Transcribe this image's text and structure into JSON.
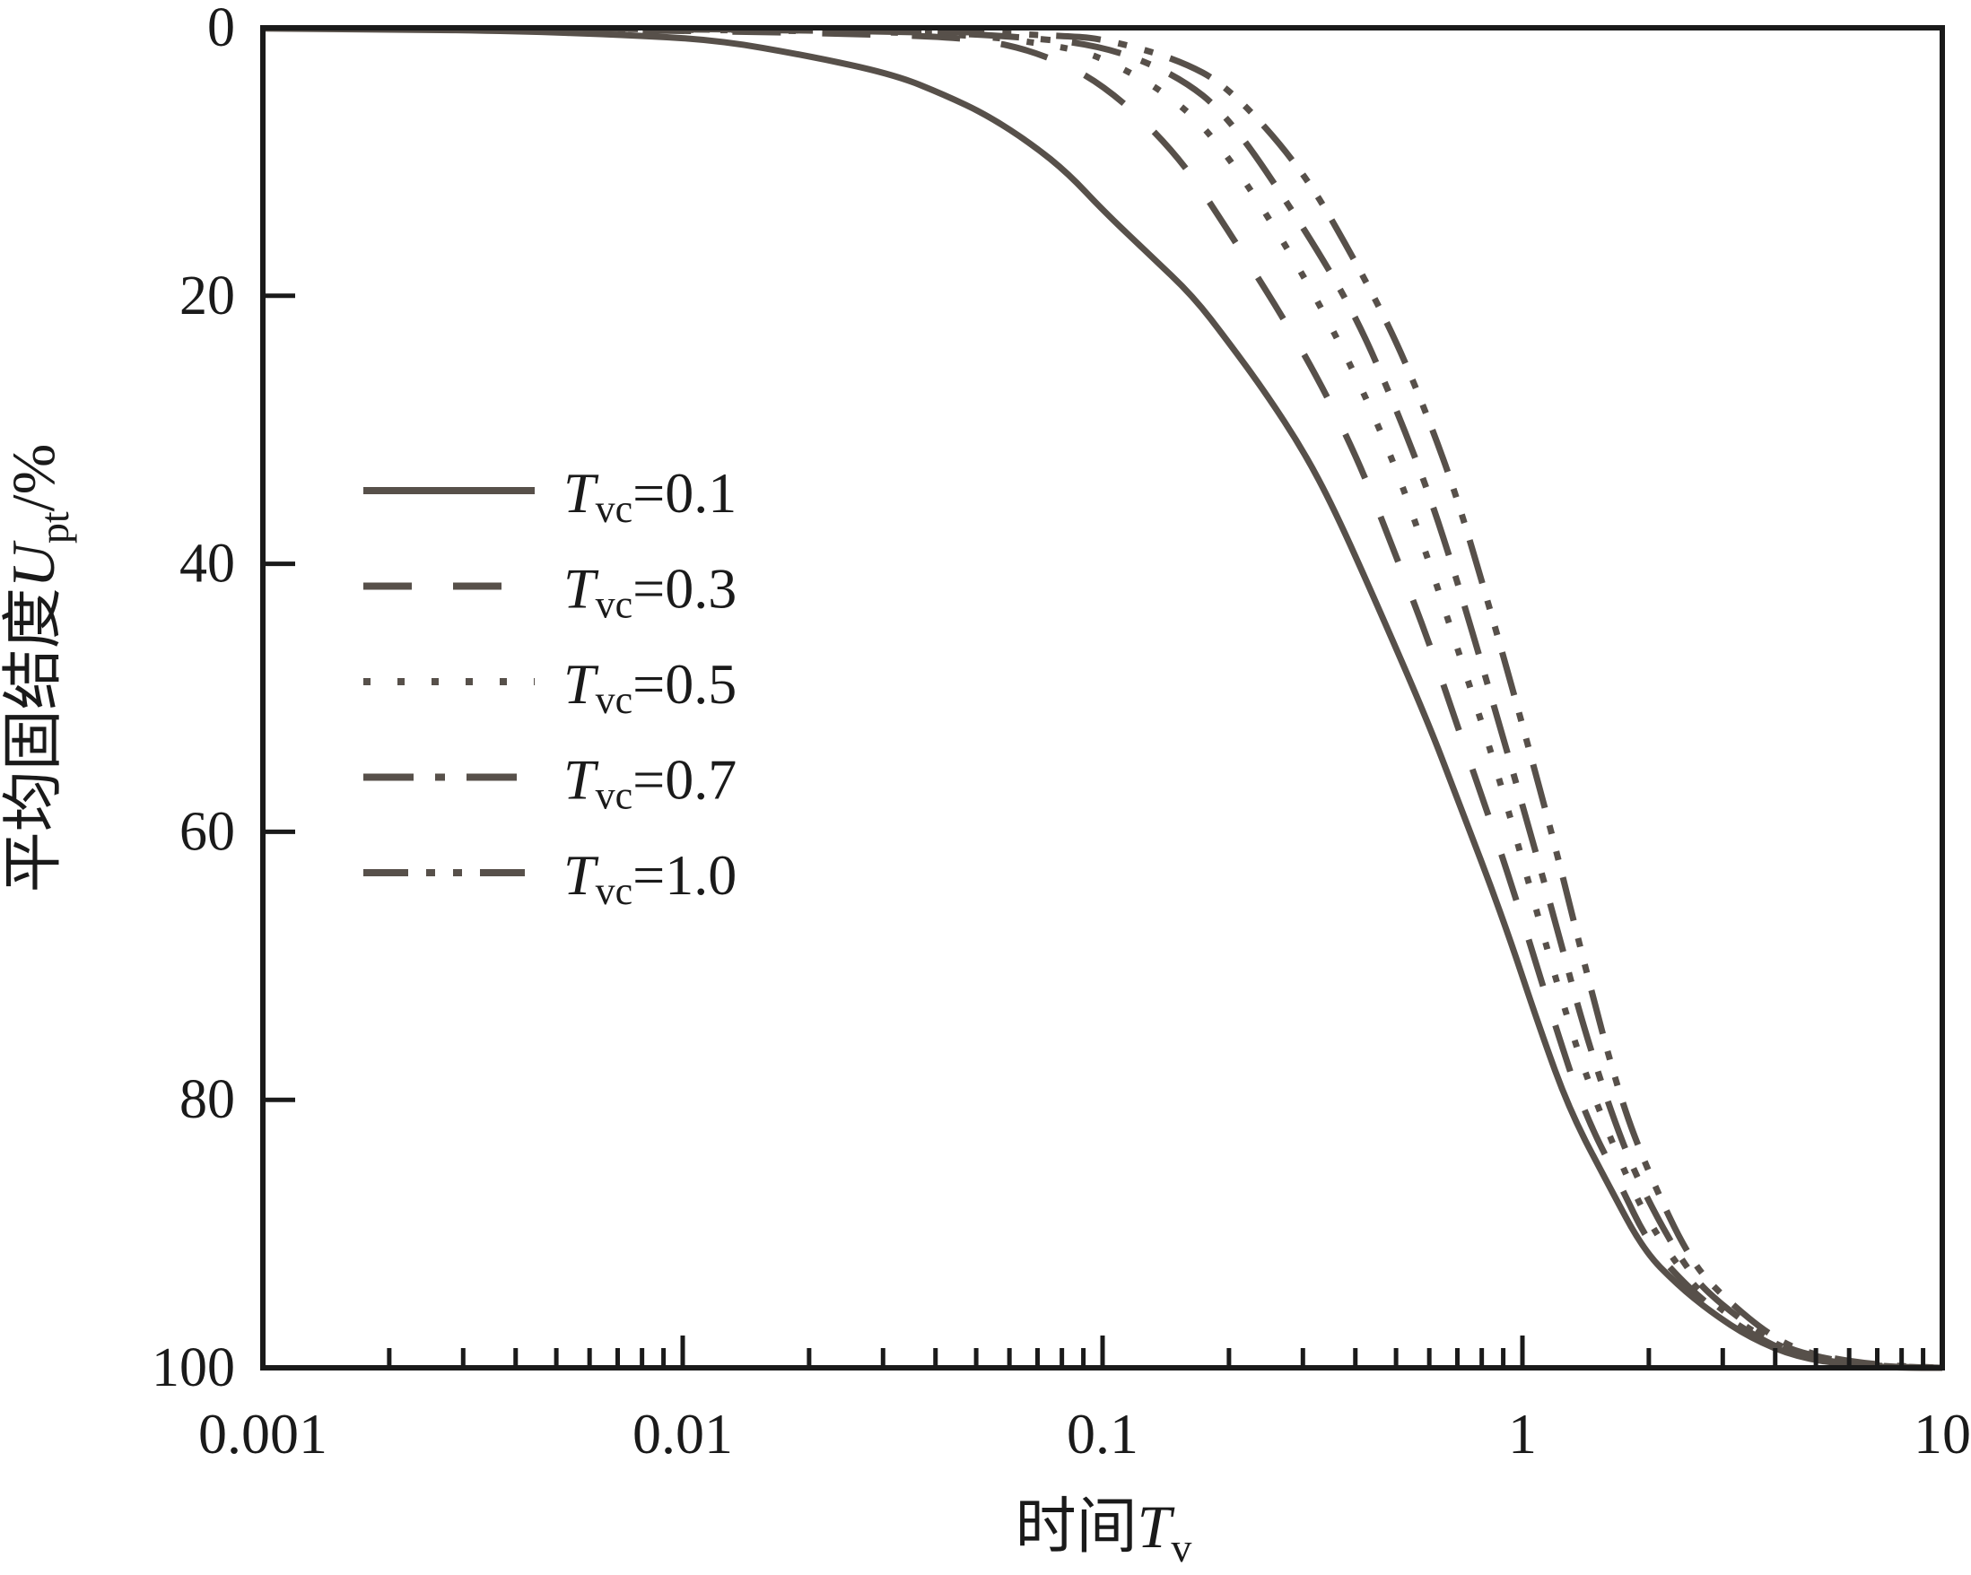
{
  "chart_data": {
    "type": "line",
    "title": "",
    "x_scale": "log",
    "xlim": [
      0.001,
      10
    ],
    "ylim": [
      0,
      100
    ],
    "y_inverted": true,
    "grid": false,
    "legend_position": "upper-left-inside",
    "colors": {
      "curve": "#57504A",
      "axis": "#1A1A1A",
      "text": "#1A1A1A"
    },
    "xlabel": {
      "prefix": "时间",
      "var": "T",
      "sub": "v"
    },
    "ylabel": {
      "prefix": "平均固结度",
      "var": "U",
      "sub": "pt",
      "suffix": "/%"
    },
    "x_ticks": [
      {
        "value": 0.001,
        "label": "0.001"
      },
      {
        "value": 0.01,
        "label": "0.01"
      },
      {
        "value": 0.1,
        "label": "0.1"
      },
      {
        "value": 1,
        "label": "1"
      },
      {
        "value": 10,
        "label": "10"
      }
    ],
    "x_minor_multiples": [
      2,
      3,
      4,
      5,
      6,
      7,
      8,
      9
    ],
    "y_ticks": [
      {
        "value": 0,
        "label": "0"
      },
      {
        "value": 20,
        "label": "20"
      },
      {
        "value": 40,
        "label": "40"
      },
      {
        "value": 60,
        "label": "60"
      },
      {
        "value": 80,
        "label": "80"
      },
      {
        "value": 100,
        "label": "100"
      }
    ],
    "y_marked_ticks": [
      20,
      40,
      60,
      80
    ],
    "series": [
      {
        "name": "Tvc=0.1",
        "tvc": 0.1,
        "style": "solid",
        "legend": {
          "var": "T",
          "sub": "vc",
          "rest": "=0.1"
        },
        "points": [
          [
            0.001,
            0.05
          ],
          [
            0.002,
            0.1
          ],
          [
            0.004,
            0.25
          ],
          [
            0.007,
            0.5
          ],
          [
            0.012,
            0.9
          ],
          [
            0.02,
            2.1
          ],
          [
            0.032,
            3.5
          ],
          [
            0.042,
            5
          ],
          [
            0.053,
            6.5
          ],
          [
            0.068,
            8.7
          ],
          [
            0.083,
            10.9
          ],
          [
            0.1,
            13.6
          ],
          [
            0.13,
            17
          ],
          [
            0.164,
            20
          ],
          [
            0.2,
            23.5
          ],
          [
            0.244,
            27.2
          ],
          [
            0.3,
            31.5
          ],
          [
            0.356,
            35.9
          ],
          [
            0.45,
            43
          ],
          [
            0.59,
            51.5
          ],
          [
            0.7,
            57.5
          ],
          [
            0.9,
            66.5
          ],
          [
            1.1,
            74.7
          ],
          [
            1.3,
            80.9
          ],
          [
            1.6,
            86.3
          ],
          [
            1.94,
            91.2
          ],
          [
            2.34,
            93.8
          ],
          [
            2.8,
            95.8
          ],
          [
            3.5,
            97.8
          ],
          [
            4.5,
            99.2
          ],
          [
            6,
            99.8
          ],
          [
            8,
            100
          ],
          [
            10,
            100
          ]
        ]
      },
      {
        "name": "Tvc=0.3",
        "tvc": 0.3,
        "style": "dashed",
        "legend": {
          "var": "T",
          "sub": "vc",
          "rest": "=0.3"
        },
        "points": [
          [
            0.003,
            0.05
          ],
          [
            0.01,
            0.2
          ],
          [
            0.03,
            0.5
          ],
          [
            0.05,
            0.8
          ],
          [
            0.07,
            1.8
          ],
          [
            0.1,
            4.1
          ],
          [
            0.15,
            9.3
          ],
          [
            0.2,
            15.2
          ],
          [
            0.3,
            24
          ],
          [
            0.4,
            31.7
          ],
          [
            0.5,
            39.4
          ],
          [
            0.6,
            45.9
          ],
          [
            0.7,
            52.1
          ],
          [
            0.85,
            59.7
          ],
          [
            1,
            66.5
          ],
          [
            1.2,
            74.6
          ],
          [
            1.4,
            80.9
          ],
          [
            1.7,
            86.2
          ],
          [
            2,
            90.8
          ],
          [
            2.5,
            94.1
          ],
          [
            3,
            96.1
          ],
          [
            4,
            98.5
          ],
          [
            5,
            99.4
          ],
          [
            7,
            99.9
          ],
          [
            10,
            100
          ]
        ]
      },
      {
        "name": "Tvc=0.5",
        "tvc": 0.5,
        "style": "dotted",
        "legend": {
          "var": "T",
          "sub": "vc",
          "rest": "=0.5"
        },
        "points": [
          [
            0.004,
            0.05
          ],
          [
            0.02,
            0.2
          ],
          [
            0.05,
            0.5
          ],
          [
            0.08,
            1.4
          ],
          [
            0.1,
            2.2
          ],
          [
            0.15,
            5.3
          ],
          [
            0.2,
            9.5
          ],
          [
            0.3,
            18.3
          ],
          [
            0.4,
            25.8
          ],
          [
            0.5,
            32.8
          ],
          [
            0.6,
            39.9
          ],
          [
            0.7,
            46.3
          ],
          [
            0.85,
            54.4
          ],
          [
            1,
            62.1
          ],
          [
            1.2,
            71
          ],
          [
            1.4,
            77.8
          ],
          [
            1.7,
            84.5
          ],
          [
            2,
            89.2
          ],
          [
            2.5,
            93.6
          ],
          [
            3,
            95.8
          ],
          [
            4,
            98.3
          ],
          [
            5,
            99.3
          ],
          [
            7,
            99.9
          ],
          [
            10,
            100
          ]
        ]
      },
      {
        "name": "Tvc=0.7",
        "tvc": 0.7,
        "style": "dashdot",
        "legend": {
          "var": "T",
          "sub": "vc",
          "rest": "=0.7"
        },
        "points": [
          [
            0.005,
            0.05
          ],
          [
            0.03,
            0.2
          ],
          [
            0.06,
            0.6
          ],
          [
            0.1,
            1.3
          ],
          [
            0.15,
            3.5
          ],
          [
            0.2,
            6.6
          ],
          [
            0.3,
            14.8
          ],
          [
            0.4,
            21.4
          ],
          [
            0.5,
            28.4
          ],
          [
            0.6,
            34.8
          ],
          [
            0.7,
            41.3
          ],
          [
            0.85,
            50.3
          ],
          [
            1,
            58
          ],
          [
            1.2,
            66.8
          ],
          [
            1.4,
            74.7
          ],
          [
            1.7,
            82.7
          ],
          [
            2,
            87.7
          ],
          [
            2.5,
            93
          ],
          [
            3,
            95.4
          ],
          [
            4,
            98.2
          ],
          [
            5,
            99.2
          ],
          [
            7,
            99.9
          ],
          [
            10,
            100
          ]
        ]
      },
      {
        "name": "Tvc=1.0",
        "tvc": 1.0,
        "style": "dashdotdot",
        "legend": {
          "var": "T",
          "sub": "vc",
          "rest": "=1.0"
        },
        "points": [
          [
            0.006,
            0.05
          ],
          [
            0.04,
            0.2
          ],
          [
            0.08,
            0.6
          ],
          [
            0.1,
            0.8
          ],
          [
            0.15,
            2.3
          ],
          [
            0.2,
            4.4
          ],
          [
            0.3,
            10.6
          ],
          [
            0.4,
            17.4
          ],
          [
            0.5,
            23.3
          ],
          [
            0.6,
            29.3
          ],
          [
            0.7,
            35.1
          ],
          [
            0.85,
            44.1
          ],
          [
            1,
            52
          ],
          [
            1.2,
            61.2
          ],
          [
            1.4,
            69.7
          ],
          [
            1.7,
            79.7
          ],
          [
            2,
            85.5
          ],
          [
            2.5,
            91.9
          ],
          [
            3,
            94.7
          ],
          [
            4,
            97.9
          ],
          [
            5,
            99.1
          ],
          [
            7,
            99.8
          ],
          [
            10,
            100
          ]
        ]
      }
    ]
  }
}
